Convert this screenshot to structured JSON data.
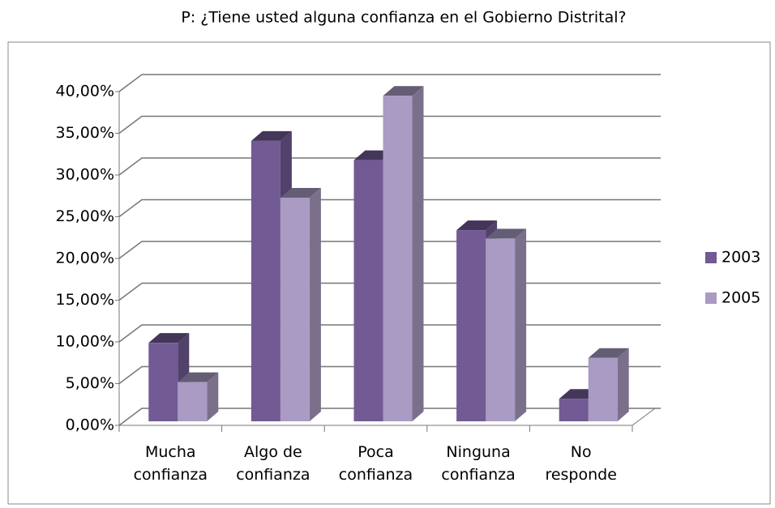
{
  "chart_data": {
    "type": "bar3d",
    "title": "P: ¿Tiene usted alguna confianza en el  Gobierno Distrital?",
    "categories": [
      "Mucha confianza",
      "Algo de confianza",
      "Poca confianza",
      "Ninguna confianza",
      "No responde"
    ],
    "series": [
      {
        "name": "2003",
        "color": "#725a94",
        "values": [
          9.4,
          33.6,
          31.3,
          22.9,
          2.7
        ]
      },
      {
        "name": "2005",
        "color": "#a99bc3",
        "values": [
          4.7,
          26.8,
          39.0,
          21.9,
          7.6
        ]
      }
    ],
    "ylim": [
      0,
      40
    ],
    "yticks": [
      {
        "value": 0,
        "label": "0,00%"
      },
      {
        "value": 5,
        "label": "5,00%"
      },
      {
        "value": 10,
        "label": "10,00%"
      },
      {
        "value": 15,
        "label": "15,00%"
      },
      {
        "value": 20,
        "label": "20,00%"
      },
      {
        "value": 25,
        "label": "25,00%"
      },
      {
        "value": 30,
        "label": "30,00%"
      },
      {
        "value": 35,
        "label": "35,00%"
      },
      {
        "value": 40,
        "label": "40,00%"
      }
    ],
    "grid": true,
    "legend": "right"
  }
}
